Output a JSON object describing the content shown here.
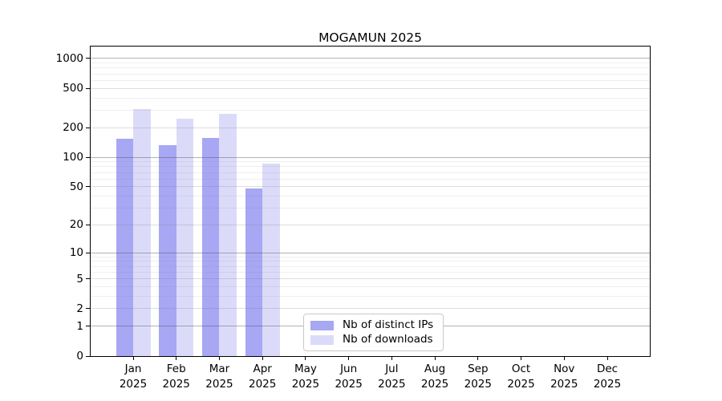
{
  "chart_data": {
    "type": "bar",
    "title": "MOGAMUN 2025",
    "year_label": "2025",
    "categories": [
      "Jan",
      "Feb",
      "Mar",
      "Apr",
      "May",
      "Jun",
      "Jul",
      "Aug",
      "Sep",
      "Oct",
      "Nov",
      "Dec"
    ],
    "series": [
      {
        "name": "Nb of distinct IPs",
        "color": "#a7a7f4",
        "values": [
          153,
          134,
          157,
          48,
          null,
          null,
          null,
          null,
          null,
          null,
          null,
          null
        ]
      },
      {
        "name": "Nb of downloads",
        "color": "#dbdbf9",
        "values": [
          308,
          246,
          277,
          86,
          null,
          null,
          null,
          null,
          null,
          null,
          null,
          null
        ]
      }
    ],
    "y_axis": {
      "scale": "log1p",
      "ticks": [
        0,
        1,
        2,
        5,
        10,
        20,
        50,
        100,
        200,
        500,
        1000
      ],
      "max": 1320,
      "decade_gridlines": [
        1,
        10,
        100,
        1000
      ],
      "sub_gridlines": [
        2,
        5,
        20,
        50,
        200,
        500
      ],
      "minor_gridlines": [
        3,
        4,
        6,
        7,
        8,
        9,
        30,
        40,
        60,
        70,
        80,
        90,
        300,
        400,
        600,
        700,
        800,
        900
      ]
    },
    "legend": {
      "items": [
        "Nb of distinct IPs",
        "Nb of downloads"
      ]
    },
    "colors": {
      "axis": "#000000",
      "grid_decade": "rgba(75,75,75,0.42)",
      "grid_sub": "rgba(128,128,128,0.26)",
      "grid_minor": "rgba(128,128,128,0.13)",
      "background": "#ffffff"
    }
  }
}
